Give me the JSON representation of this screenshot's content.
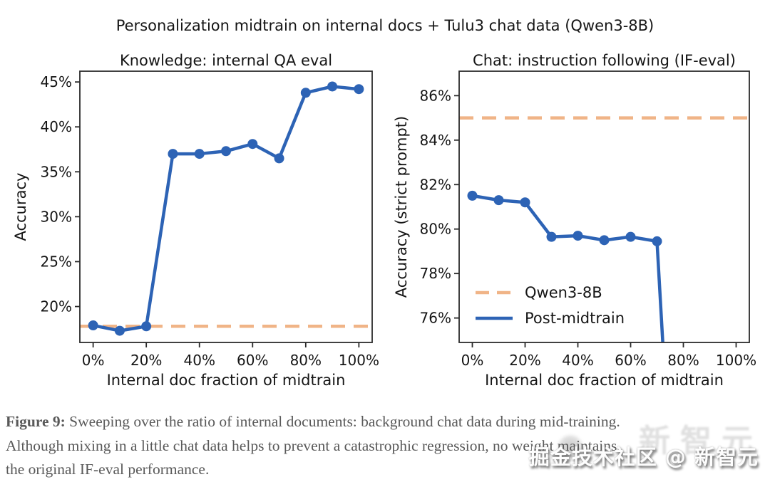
{
  "figure_title": "Personalization midtrain on internal docs + Tulu3 chat data (Qwen3-8B)",
  "colors": {
    "line_blue": "#2d63b5",
    "dash_orange": "#f0b487",
    "spine": "#2b2b2b",
    "text": "#151515",
    "caption_gray": "#595959"
  },
  "chart_data": [
    {
      "id": "knowledge",
      "type": "line",
      "title": "Knowledge: internal QA eval",
      "xlabel": "Internal doc fraction of midtrain",
      "ylabel": "Accuracy",
      "xlim": [
        -5,
        105
      ],
      "ylim": [
        16,
        46.2
      ],
      "grid": false,
      "x_ticks": [
        {
          "v": 0,
          "label": "0%"
        },
        {
          "v": 20,
          "label": "20%"
        },
        {
          "v": 40,
          "label": "40%"
        },
        {
          "v": 60,
          "label": "60%"
        },
        {
          "v": 80,
          "label": "80%"
        },
        {
          "v": 100,
          "label": "100%"
        }
      ],
      "y_ticks": [
        {
          "v": 20,
          "label": "20%"
        },
        {
          "v": 25,
          "label": "25%"
        },
        {
          "v": 30,
          "label": "30%"
        },
        {
          "v": 35,
          "label": "35%"
        },
        {
          "v": 40,
          "label": "40%"
        },
        {
          "v": 45,
          "label": "45%"
        }
      ],
      "baseline": {
        "name": "Qwen3-8B",
        "value": 17.8,
        "style": "dashed",
        "color_key": "dash_orange"
      },
      "series": [
        {
          "name": "Post-midtrain",
          "color_key": "line_blue",
          "x": [
            0,
            10,
            20,
            30,
            40,
            50,
            60,
            70,
            80,
            90,
            100
          ],
          "y": [
            17.9,
            17.3,
            17.8,
            37.0,
            37.0,
            37.3,
            38.1,
            36.5,
            43.8,
            44.5,
            44.2
          ]
        }
      ]
    },
    {
      "id": "chat",
      "type": "line",
      "title": "Chat: instruction following (IF-eval)",
      "xlabel": "Internal doc fraction of midtrain",
      "ylabel": "Accuracy (strict prompt)",
      "xlim": [
        -5,
        105
      ],
      "ylim": [
        74.9,
        87.1
      ],
      "grid": false,
      "x_ticks": [
        {
          "v": 0,
          "label": "0%"
        },
        {
          "v": 20,
          "label": "20%"
        },
        {
          "v": 40,
          "label": "40%"
        },
        {
          "v": 60,
          "label": "60%"
        },
        {
          "v": 80,
          "label": "80%"
        },
        {
          "v": 100,
          "label": "100%"
        }
      ],
      "y_ticks": [
        {
          "v": 76,
          "label": "76%"
        },
        {
          "v": 78,
          "label": "78%"
        },
        {
          "v": 80,
          "label": "80%"
        },
        {
          "v": 82,
          "label": "82%"
        },
        {
          "v": 84,
          "label": "84%"
        },
        {
          "v": 86,
          "label": "86%"
        }
      ],
      "baseline": {
        "name": "Qwen3-8B",
        "value": 85.0,
        "style": "dashed",
        "color_key": "dash_orange"
      },
      "series": [
        {
          "name": "Post-midtrain",
          "color_key": "line_blue",
          "x": [
            0,
            10,
            20,
            30,
            40,
            50,
            60,
            70
          ],
          "y": [
            81.5,
            81.3,
            81.2,
            79.65,
            79.7,
            79.5,
            79.65,
            79.45
          ],
          "drops_below_axis_after_x": 70,
          "drop_exit_x": 72.5
        }
      ],
      "legend": {
        "position": "lower left",
        "items": [
          {
            "label": "Qwen3-8B",
            "dashed": true,
            "color_key": "dash_orange"
          },
          {
            "label": "Post-midtrain",
            "dashed": false,
            "color_key": "line_blue"
          }
        ]
      }
    }
  ],
  "caption": {
    "label": "Figure 9:",
    "lines": [
      "Sweeping over the ratio of internal documents: background chat data during mid-training.",
      "Although mixing in a little chat data helps to prevent a catastrophic regression, no weight maintains",
      "the original IF-eval performance."
    ]
  },
  "watermark": {
    "text": "掘金技术社区 @ 新智元",
    "ghost_text": "新智元"
  }
}
